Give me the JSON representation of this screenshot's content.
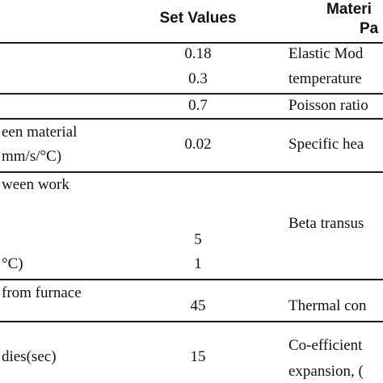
{
  "table": {
    "headers": {
      "set_values": "Set Values",
      "material_line1": "Materi",
      "material_line2": "Pa"
    },
    "rows": [
      {
        "param_lines": [],
        "values": [
          "0.18",
          "0.3"
        ],
        "material_lines": [
          "Elastic Mod",
          "temperature"
        ]
      },
      {
        "param_lines": [],
        "values": [
          "0.7"
        ],
        "material_lines": [
          "Poisson ratio"
        ]
      },
      {
        "param_lines": [
          "een material",
          "mm/s/°C)"
        ],
        "values": [
          "0.02"
        ],
        "material_lines": [
          "Specific hea"
        ]
      },
      {
        "param_lines": [
          "ween work",
          "°C)"
        ],
        "values": [
          "5",
          "1"
        ],
        "material_lines": [
          "Beta transus"
        ]
      },
      {
        "param_lines": [
          "from furnace"
        ],
        "values": [
          "45"
        ],
        "material_lines": [
          "Thermal con"
        ]
      },
      {
        "param_lines": [
          "dies(sec)"
        ],
        "values": [
          "15"
        ],
        "material_lines": [
          "Co-efficient",
          "expansion, ("
        ]
      }
    ]
  }
}
